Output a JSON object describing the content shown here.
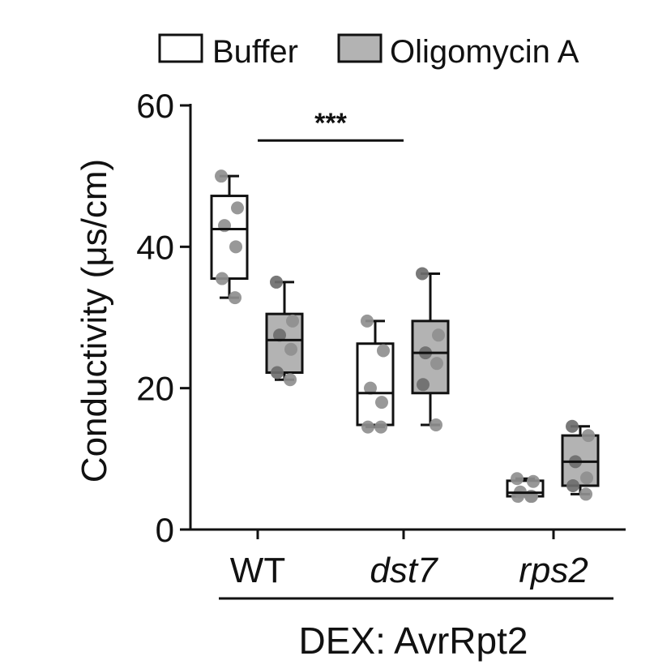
{
  "chart_data": {
    "type": "box",
    "title": "",
    "ylabel": "Conductivity (μs/cm)",
    "ylim": [
      0,
      60
    ],
    "yticks": [
      0,
      20,
      40,
      60
    ],
    "grid": false,
    "legend_position": "top",
    "categories": [
      {
        "label": "WT",
        "italic": false
      },
      {
        "label": "dst7",
        "italic": true
      },
      {
        "label": "rps2",
        "italic": true
      }
    ],
    "group_label": "DEX: AvrRpt2",
    "series": [
      {
        "name": "Buffer",
        "fill": "#ffffff",
        "boxes": [
          {
            "min": 32.8,
            "q1": 35.5,
            "median": 42.5,
            "q3": 47.2,
            "max": 50.0,
            "points": [
              50.0,
              45.5,
              43.0,
              40.0,
              35.5,
              32.8
            ]
          },
          {
            "min": 14.5,
            "q1": 14.8,
            "median": 19.3,
            "q3": 26.3,
            "max": 29.5,
            "points": [
              29.5,
              25.3,
              20.0,
              18.0,
              14.5,
              14.5
            ]
          },
          {
            "min": 4.7,
            "q1": 4.7,
            "median": 5.2,
            "q3": 6.9,
            "max": 7.2,
            "points": [
              7.2,
              6.8,
              5.3,
              4.7,
              4.7,
              4.7
            ]
          }
        ]
      },
      {
        "name": "Oligomycin A",
        "fill": "#b3b3b3",
        "boxes": [
          {
            "min": 21.2,
            "q1": 22.2,
            "median": 26.8,
            "q3": 30.5,
            "max": 35.0,
            "points": [
              35.0,
              29.5,
              27.5,
              25.5,
              22.2,
              21.2
            ]
          },
          {
            "min": 14.8,
            "q1": 19.3,
            "median": 25.0,
            "q3": 29.5,
            "max": 36.2,
            "points": [
              36.2,
              27.5,
              25.0,
              23.5,
              20.5,
              14.8
            ]
          },
          {
            "min": 5.0,
            "q1": 6.2,
            "median": 9.6,
            "q3": 13.3,
            "max": 14.6,
            "points": [
              14.6,
              13.3,
              9.6,
              7.3,
              6.2,
              5.0
            ]
          }
        ]
      }
    ],
    "annotations": [
      {
        "text": "***",
        "y": 55.5,
        "from_series": 0,
        "from_category": 0,
        "to_series": 0,
        "to_category": 1
      }
    ],
    "colors": {
      "point": "#8f8f8f",
      "point_dark": "#6e6e6e",
      "line": "#111111"
    }
  }
}
